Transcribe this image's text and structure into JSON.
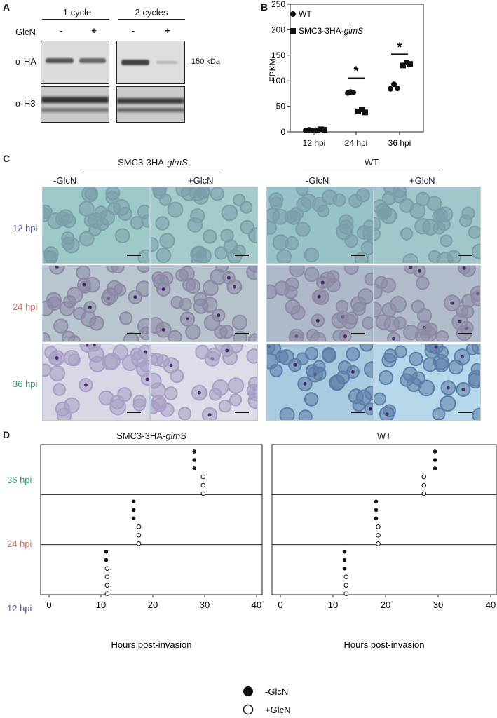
{
  "panels": [
    "A",
    "B",
    "C",
    "D"
  ],
  "panel_a": {
    "cycles": [
      "1 cycle",
      "2 cycles"
    ],
    "glcn_label": "GlcN",
    "signs": [
      "-",
      "+",
      "-",
      "+"
    ],
    "antibodies": [
      "α-HA",
      "α-H3"
    ],
    "marker": "150 kDa"
  },
  "panel_b": {
    "ylabel": "FPKM",
    "legend": [
      {
        "name": "WT",
        "prefix": "",
        "italic": ""
      },
      {
        "name": "SMC3-3HA-",
        "prefix": "SMC3-3HA-",
        "italic": "glmS"
      }
    ],
    "star": "*"
  },
  "panel_c": {
    "groups": [
      {
        "prefix": "SMC3-3HA-",
        "italic": "glmS"
      },
      {
        "prefix": "WT",
        "italic": ""
      }
    ],
    "conditions": [
      "-GlcN",
      "+GlcN",
      "-GlcN",
      "+GlcN"
    ],
    "rows": [
      {
        "label": "12 hpi",
        "color": "#4a55b0"
      },
      {
        "label": "24 hpi",
        "color": "#e06a5a"
      },
      {
        "label": "36 hpi",
        "color": "#2a9a5a"
      }
    ]
  },
  "panel_d": {
    "titles": [
      {
        "prefix": "SMC3-3HA-",
        "italic": "glmS"
      },
      {
        "prefix": "WT",
        "italic": ""
      }
    ],
    "xlabel": "Hours post-invasion",
    "rows": [
      {
        "label": "36 hpi",
        "color": "#2a9a5a"
      },
      {
        "label": "24 hpi",
        "color": "#e06a5a"
      },
      {
        "label": "12 hpi",
        "color": "#4a55b0"
      }
    ],
    "legend": [
      {
        "label": "-GlcN",
        "filled": true
      },
      {
        "label": "+GlcN",
        "filled": false
      }
    ]
  },
  "chart_data": [
    {
      "type": "scatter",
      "ylabel": "FPKM",
      "categories": [
        "12 hpi",
        "24 hpi",
        "36 hpi"
      ],
      "ylim": [
        0,
        250
      ],
      "yticks": [
        0,
        50,
        100,
        150,
        200,
        250
      ],
      "series": [
        {
          "name": "WT",
          "marker": "circle",
          "points": [
            [
              0,
              3
            ],
            [
              0,
              4
            ],
            [
              0,
              3
            ],
            [
              1,
              76
            ],
            [
              1,
              78
            ],
            [
              1,
              77
            ],
            [
              2,
              84
            ],
            [
              2,
              93
            ],
            [
              2,
              85
            ]
          ]
        },
        {
          "name": "SMC3-3HA-glmS",
          "marker": "square",
          "points": [
            [
              0,
              3
            ],
            [
              0,
              5
            ],
            [
              0,
              4
            ],
            [
              1,
              40
            ],
            [
              1,
              44
            ],
            [
              1,
              38
            ],
            [
              2,
              130
            ],
            [
              2,
              136
            ],
            [
              2,
              133
            ]
          ]
        }
      ],
      "significance": [
        "",
        "*",
        "*"
      ],
      "legend_position": "top-left"
    },
    {
      "type": "scatter",
      "xlabel": "Hours post-invasion",
      "xlim": [
        0,
        40
      ],
      "xticks": [
        0,
        10,
        20,
        30,
        40
      ],
      "panels": [
        {
          "title": "SMC3-3HA-glmS",
          "rows": [
            {
              "row": "36 hpi",
              "minus": [
                28,
                28,
                28
              ],
              "plus": [
                29.7,
                29.7,
                29.7
              ]
            },
            {
              "row": "24 hpi",
              "minus": [
                16.3,
                16.3,
                16.3
              ],
              "plus": [
                17.3,
                17.3,
                17.3
              ]
            },
            {
              "row": "12 hpi",
              "minus": [
                11,
                11
              ],
              "plus": [
                11.2,
                11.2,
                11.2,
                11.2
              ]
            }
          ]
        },
        {
          "title": "WT",
          "rows": [
            {
              "row": "36 hpi",
              "minus": [
                29.4,
                29.4,
                29.4
              ],
              "plus": [
                27.3,
                27.3,
                27.3
              ]
            },
            {
              "row": "24 hpi",
              "minus": [
                18.2,
                18.2,
                18.2
              ],
              "plus": [
                18.6,
                18.6,
                18.6
              ]
            },
            {
              "row": "12 hpi",
              "minus": [
                12.2,
                12.2,
                12.2
              ],
              "plus": [
                12.5,
                12.5,
                12.5
              ]
            }
          ]
        }
      ]
    }
  ]
}
